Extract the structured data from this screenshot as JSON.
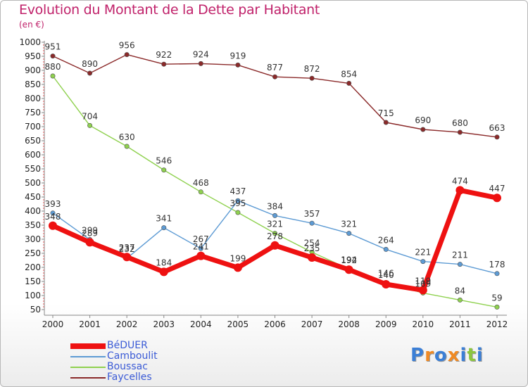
{
  "header": {
    "title": "Evolution du Montant de la Dette par Habitant",
    "subtitle": "(en €)"
  },
  "logo": {
    "text": "Proxiti",
    "letters": [
      "P",
      "r",
      "o",
      "x",
      "i",
      "t",
      "i"
    ],
    "colors": [
      "#3b7fd6",
      "#f08a24",
      "#3b7fd6",
      "#f08a24",
      "#3b7fd6",
      "#8cc63f",
      "#3b7fd6"
    ]
  },
  "chart_data": {
    "type": "line",
    "title": "Evolution du Montant de la Dette par Habitant",
    "subtitle": "(en €)",
    "x": [
      "2000",
      "2001",
      "2002",
      "2003",
      "2004",
      "2005",
      "2006",
      "2007",
      "2008",
      "2009",
      "2010",
      "2011",
      "2012"
    ],
    "ylim": [
      50,
      1000
    ],
    "yticks": [
      50,
      100,
      150,
      200,
      250,
      300,
      350,
      400,
      450,
      500,
      550,
      600,
      650,
      700,
      750,
      800,
      850,
      900,
      950,
      1000
    ],
    "grid": false,
    "legend_position": "bottom-left",
    "series": [
      {
        "name": "BéDUER",
        "color": "#ee1111",
        "values": [
          348,
          289,
          237,
          184,
          241,
          199,
          278,
          235,
          192,
          140,
          119,
          474,
          447
        ],
        "labels": [
          "348",
          "289",
          "237",
          "184",
          "241",
          "199",
          "278",
          "235",
          "192",
          "140",
          "119",
          "474",
          "447"
        ]
      },
      {
        "name": "Camboulit",
        "color": "#5d9bd4",
        "values": [
          393,
          299,
          232,
          341,
          267,
          437,
          384,
          357,
          321,
          264,
          221,
          211,
          178
        ],
        "labels": [
          "393",
          "299",
          "232",
          "341",
          "267",
          "437",
          "384",
          "357",
          "321",
          "264",
          "221",
          "211",
          "178"
        ]
      },
      {
        "name": "Boussac",
        "color": "#8fd14f",
        "values": [
          880,
          704,
          630,
          546,
          468,
          395,
          321,
          254,
          194,
          146,
          109,
          84,
          59
        ],
        "labels": [
          "880",
          "704",
          "630",
          "546",
          "468",
          "395",
          "321",
          "254",
          "194",
          "146",
          "109",
          "84",
          "59"
        ]
      },
      {
        "name": "Faycelles",
        "color": "#8b2a2a",
        "values": [
          951,
          890,
          956,
          922,
          924,
          919,
          877,
          872,
          854,
          715,
          690,
          680,
          663
        ],
        "labels": [
          "951",
          "890",
          "956",
          "922",
          "924",
          "919",
          "877",
          "872",
          "854",
          "715",
          "690",
          "680",
          "663"
        ]
      }
    ]
  }
}
